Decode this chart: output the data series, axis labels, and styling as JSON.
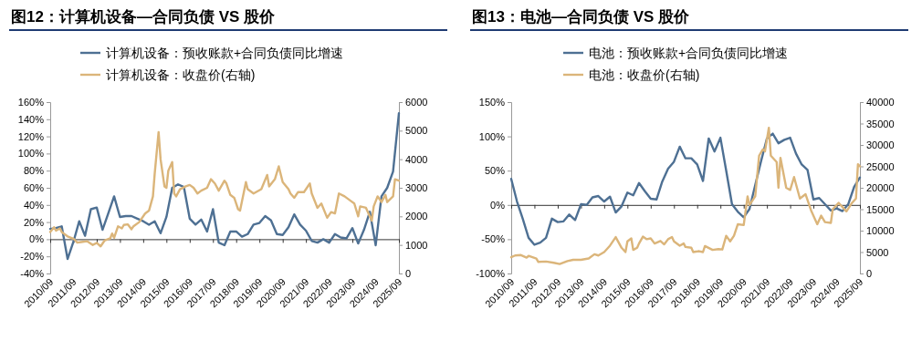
{
  "chart_data": [
    {
      "type": "line",
      "title": "图12：计算机设备—合同负债 VS 股价",
      "legend": "top",
      "xlim": [
        "2010-09",
        "2025-09"
      ],
      "xticks": [
        {
          "value": "2010-09",
          "label": "2010/09"
        },
        {
          "value": "2011-09",
          "label": "2011/09"
        },
        {
          "value": "2012-09",
          "label": "2012/09"
        },
        {
          "value": "2013-09",
          "label": "2013/09"
        },
        {
          "value": "2014-09",
          "label": "2014/09"
        },
        {
          "value": "2015-09",
          "label": "2015/09"
        },
        {
          "value": "2016-09",
          "label": "2016/09"
        },
        {
          "value": "2017-09",
          "label": "2017/09"
        },
        {
          "value": "2018-09",
          "label": "2018/09"
        },
        {
          "value": "2019-09",
          "label": "2019/09"
        },
        {
          "value": "2020-09",
          "label": "2020/09"
        },
        {
          "value": "2021-09",
          "label": "2021/09"
        },
        {
          "value": "2022-09",
          "label": "2022/09"
        },
        {
          "value": "2023-09",
          "label": "2023/09"
        },
        {
          "value": "2024-09",
          "label": "2024/09"
        },
        {
          "value": "2025-09",
          "label": "2025/09"
        }
      ],
      "ylim": [
        -40,
        160
      ],
      "yticks": [
        {
          "value": -40,
          "label": "-40%"
        },
        {
          "value": -20,
          "label": "-20%"
        },
        {
          "value": 0,
          "label": "0%"
        },
        {
          "value": 20,
          "label": "20%"
        },
        {
          "value": 40,
          "label": "40%"
        },
        {
          "value": 60,
          "label": "60%"
        },
        {
          "value": 80,
          "label": "80%"
        },
        {
          "value": 100,
          "label": "100%"
        },
        {
          "value": 120,
          "label": "120%"
        },
        {
          "value": 140,
          "label": "140%"
        },
        {
          "value": 160,
          "label": "160%"
        }
      ],
      "y2lim": [
        0,
        6000
      ],
      "y2ticks": [
        0,
        1000,
        2000,
        3000,
        4000,
        5000,
        6000
      ],
      "series": [
        {
          "name": "计算机设备：预收账款+合同负债同比增速",
          "color": "#4e7093",
          "x": [
            "2010-09",
            "2010-12",
            "2011-03",
            "2011-06",
            "2011-09",
            "2011-12",
            "2012-03",
            "2012-06",
            "2012-09",
            "2012-12",
            "2013-03",
            "2013-06",
            "2013-09",
            "2013-12",
            "2014-03",
            "2014-06",
            "2014-09",
            "2014-12",
            "2015-03",
            "2015-06",
            "2015-09",
            "2015-12",
            "2016-03",
            "2016-06",
            "2016-09",
            "2016-12",
            "2017-03",
            "2017-06",
            "2017-09",
            "2017-12",
            "2018-03",
            "2018-06",
            "2018-09",
            "2018-12",
            "2019-03",
            "2019-06",
            "2019-09",
            "2019-12",
            "2020-03",
            "2020-06",
            "2020-09",
            "2020-12",
            "2021-03",
            "2021-06",
            "2021-09",
            "2021-12",
            "2022-03",
            "2022-06",
            "2022-09",
            "2022-12",
            "2023-03",
            "2023-06",
            "2023-09",
            "2023-12",
            "2024-03",
            "2024-06",
            "2024-09",
            "2024-12",
            "2025-03",
            "2025-06",
            "2025-09"
          ],
          "values": [
            12,
            13,
            15,
            -23,
            -3,
            21,
            4,
            35,
            37,
            11,
            30,
            50,
            26,
            27,
            27,
            24,
            21,
            17,
            21,
            7,
            26,
            60,
            64,
            61,
            24,
            17,
            23,
            9,
            35,
            -4,
            -7,
            9,
            9,
            3,
            6,
            17,
            19,
            27,
            22,
            6,
            5,
            14,
            29,
            17,
            10,
            -2,
            -4,
            0,
            -4,
            6,
            2,
            1,
            13,
            -5,
            11,
            32,
            -7,
            50,
            60,
            79,
            147
          ]
        },
        {
          "name": "计算机设备：收盘价(右轴)",
          "color": "#dbb57a",
          "axis": "y2",
          "x": [
            "2010-09",
            "2010-11",
            "2010-12",
            "2011-02",
            "2011-03",
            "2011-06",
            "2011-09",
            "2011-11",
            "2012-01",
            "2012-04",
            "2012-07",
            "2012-09",
            "2012-11",
            "2013-01",
            "2013-04",
            "2013-05",
            "2013-06",
            "2013-08",
            "2013-10",
            "2013-11",
            "2014-01",
            "2014-03",
            "2014-04",
            "2014-07",
            "2014-10",
            "2014-12",
            "2015-02",
            "2015-03",
            "2015-05",
            "2015-06",
            "2015-08",
            "2015-09",
            "2015-10",
            "2015-12",
            "2016-01",
            "2016-02",
            "2016-04",
            "2016-07",
            "2016-09",
            "2016-11",
            "2017-01",
            "2017-03",
            "2017-06",
            "2017-08",
            "2017-10",
            "2017-12",
            "2018-03",
            "2018-04",
            "2018-06",
            "2018-08",
            "2018-10",
            "2018-11",
            "2019-02",
            "2019-03",
            "2019-06",
            "2019-10",
            "2020-01",
            "2020-02",
            "2020-05",
            "2020-07",
            "2020-09",
            "2020-12",
            "2021-01",
            "2021-03",
            "2021-05",
            "2021-08",
            "2021-11",
            "2021-12",
            "2022-03",
            "2022-05",
            "2022-08",
            "2022-10",
            "2022-12",
            "2023-02",
            "2023-05",
            "2023-08",
            "2023-10",
            "2023-12",
            "2024-01",
            "2024-04",
            "2024-07",
            "2024-08",
            "2024-10",
            "2024-12",
            "2025-02",
            "2025-03",
            "2025-06",
            "2025-07",
            "2025-09"
          ],
          "values": [
            1450,
            1620,
            1500,
            1580,
            1450,
            1300,
            1220,
            1080,
            1100,
            1130,
            1000,
            1070,
            950,
            1150,
            1230,
            1400,
            1250,
            1650,
            1580,
            1700,
            1720,
            1550,
            1650,
            1800,
            2100,
            2200,
            2700,
            3500,
            4950,
            4000,
            3050,
            3000,
            3600,
            3900,
            2800,
            2700,
            2950,
            3050,
            3100,
            3000,
            2800,
            2900,
            3000,
            3300,
            3150,
            2900,
            3250,
            3150,
            2750,
            2650,
            2250,
            2200,
            3200,
            2950,
            2800,
            2950,
            3450,
            3050,
            3300,
            3750,
            3200,
            2950,
            2800,
            2650,
            2850,
            2850,
            3150,
            2800,
            2300,
            2450,
            1950,
            2150,
            2100,
            2800,
            2700,
            2550,
            2450,
            2000,
            2350,
            2300,
            1850,
            2350,
            2700,
            2500,
            2750,
            2500,
            2700,
            3300,
            3250
          ]
        }
      ]
    },
    {
      "type": "line",
      "title": "图13：电池—合同负债 VS 股价",
      "legend": "top",
      "xlim": [
        "2010-09",
        "2025-09"
      ],
      "xticks": [
        {
          "value": "2010-09",
          "label": "2010/09"
        },
        {
          "value": "2011-09",
          "label": "2011/09"
        },
        {
          "value": "2012-09",
          "label": "2012/09"
        },
        {
          "value": "2013-09",
          "label": "2013/09"
        },
        {
          "value": "2014-09",
          "label": "2014/09"
        },
        {
          "value": "2015-09",
          "label": "2015/09"
        },
        {
          "value": "2016-09",
          "label": "2016/09"
        },
        {
          "value": "2017-09",
          "label": "2017/09"
        },
        {
          "value": "2018-09",
          "label": "2018/09"
        },
        {
          "value": "2019-09",
          "label": "2019/09"
        },
        {
          "value": "2020-09",
          "label": "2020/09"
        },
        {
          "value": "2021-09",
          "label": "2021/09"
        },
        {
          "value": "2022-09",
          "label": "2022/09"
        },
        {
          "value": "2023-09",
          "label": "2023/09"
        },
        {
          "value": "2024-09",
          "label": "2024/09"
        },
        {
          "value": "2025-09",
          "label": "2025/09"
        }
      ],
      "ylim": [
        -100,
        150
      ],
      "yticks": [
        {
          "value": -100,
          "label": "-100%"
        },
        {
          "value": -50,
          "label": "-50%"
        },
        {
          "value": 0,
          "label": "0%"
        },
        {
          "value": 50,
          "label": "50%"
        },
        {
          "value": 100,
          "label": "100%"
        },
        {
          "value": 150,
          "label": "150%"
        }
      ],
      "y2lim": [
        0,
        40000
      ],
      "y2ticks": [
        0,
        5000,
        10000,
        15000,
        20000,
        25000,
        30000,
        35000,
        40000
      ],
      "series": [
        {
          "name": "电池：预收账款+合同负债同比增速",
          "color": "#4e7093",
          "x": [
            "2010-09",
            "2010-12",
            "2011-03",
            "2011-06",
            "2011-09",
            "2011-12",
            "2012-03",
            "2012-06",
            "2012-09",
            "2012-12",
            "2013-03",
            "2013-06",
            "2013-09",
            "2013-12",
            "2014-03",
            "2014-06",
            "2014-09",
            "2014-12",
            "2015-03",
            "2015-06",
            "2015-09",
            "2015-12",
            "2016-03",
            "2016-06",
            "2016-09",
            "2016-12",
            "2017-03",
            "2017-06",
            "2017-09",
            "2017-12",
            "2018-03",
            "2018-06",
            "2018-09",
            "2018-12",
            "2019-03",
            "2019-06",
            "2019-09",
            "2019-12",
            "2020-03",
            "2020-06",
            "2020-09",
            "2020-12",
            "2021-03",
            "2021-06",
            "2021-09",
            "2021-12",
            "2022-03",
            "2022-06",
            "2022-09",
            "2022-12",
            "2023-03",
            "2023-06",
            "2023-09",
            "2023-12",
            "2024-03",
            "2024-06",
            "2024-09",
            "2024-12",
            "2025-03",
            "2025-06",
            "2025-09"
          ],
          "values": [
            38,
            5,
            -20,
            -48,
            -58,
            -55,
            -48,
            -20,
            -25,
            -24,
            -14,
            -22,
            1,
            0,
            11,
            13,
            5,
            12,
            -11,
            -2,
            18,
            14,
            32,
            20,
            9,
            8,
            34,
            53,
            63,
            85,
            68,
            68,
            59,
            35,
            97,
            78,
            98,
            50,
            1,
            -10,
            -18,
            -6,
            29,
            64,
            97,
            104,
            90,
            95,
            98,
            75,
            59,
            51,
            8,
            10,
            1,
            -8,
            -5,
            -9,
            1,
            26,
            40
          ]
        },
        {
          "name": "电池：收盘价(右轴)",
          "color": "#dbb57a",
          "axis": "y2",
          "x": [
            "2010-09",
            "2010-11",
            "2011-02",
            "2011-05",
            "2011-06",
            "2011-10",
            "2011-11",
            "2012-03",
            "2012-07",
            "2012-10",
            "2013-02",
            "2013-05",
            "2013-09",
            "2014-01",
            "2014-04",
            "2014-06",
            "2014-09",
            "2014-12",
            "2015-03",
            "2015-06",
            "2015-08",
            "2015-09",
            "2015-11",
            "2015-12",
            "2016-02",
            "2016-03",
            "2016-05",
            "2016-07",
            "2016-09",
            "2016-11",
            "2017-02",
            "2017-04",
            "2017-06",
            "2017-08",
            "2017-09",
            "2017-12",
            "2018-02",
            "2018-03",
            "2018-06",
            "2018-07",
            "2018-10",
            "2018-12",
            "2019-01",
            "2019-05",
            "2019-08",
            "2019-10",
            "2019-12",
            "2020-02",
            "2020-04",
            "2020-06",
            "2020-09",
            "2020-11",
            "2020-12",
            "2021-03",
            "2021-05",
            "2021-07",
            "2021-08",
            "2021-10",
            "2021-11",
            "2022-02",
            "2022-03",
            "2022-04",
            "2022-07",
            "2022-09",
            "2022-11",
            "2023-02",
            "2023-05",
            "2023-08",
            "2023-11",
            "2024-01",
            "2024-03",
            "2024-06",
            "2024-07",
            "2024-10",
            "2024-12",
            "2025-02",
            "2025-05",
            "2025-07",
            "2025-08",
            "2025-09"
          ],
          "values": [
            3800,
            4200,
            4300,
            3700,
            4100,
            3500,
            2700,
            2800,
            2500,
            2200,
            2900,
            3200,
            3200,
            3500,
            4500,
            4200,
            5000,
            6500,
            8500,
            6000,
            5000,
            7500,
            8200,
            5500,
            6000,
            7000,
            8600,
            8000,
            8200,
            7000,
            7600,
            6800,
            8000,
            8500,
            7500,
            6500,
            7000,
            6200,
            6000,
            5000,
            5200,
            5000,
            6400,
            5500,
            5700,
            5600,
            8800,
            7500,
            8800,
            11500,
            11300,
            18000,
            16000,
            18000,
            27500,
            29000,
            28500,
            34000,
            27500,
            26000,
            20000,
            27000,
            20000,
            19500,
            22500,
            17500,
            18500,
            14500,
            11500,
            13500,
            12000,
            11800,
            15000,
            16500,
            15500,
            14500,
            16500,
            17500,
            25500,
            25000
          ]
        }
      ]
    }
  ]
}
